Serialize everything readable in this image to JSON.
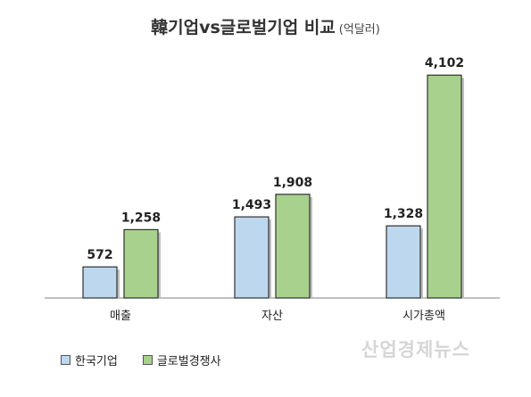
{
  "title": {
    "main": "韓기업vs글로벌기업 비교",
    "unit": "(억달러)"
  },
  "watermark": "산업경제뉴스",
  "colors": {
    "korea": "#bdd7ee",
    "global": "#a9d18e",
    "axis": "#7f7f7f",
    "bar_border": "#2f2f2f"
  },
  "chart_data": {
    "type": "bar",
    "title": "韓기업vs글로벌기업 비교 (억달러)",
    "categories": [
      "매출",
      "자산",
      "시가총액"
    ],
    "series": [
      {
        "name": "한국기업",
        "values": [
          572,
          1493,
          1328
        ],
        "labels": [
          "572",
          "1,493",
          "1,328"
        ]
      },
      {
        "name": "글로벌경쟁사",
        "values": [
          1258,
          1908,
          4102
        ],
        "labels": [
          "1,258",
          "1,908",
          "4,102"
        ]
      }
    ],
    "xlabel": "",
    "ylabel": "",
    "ylim": [
      0,
      4500
    ],
    "grid": false,
    "legend": "bottom-left"
  }
}
